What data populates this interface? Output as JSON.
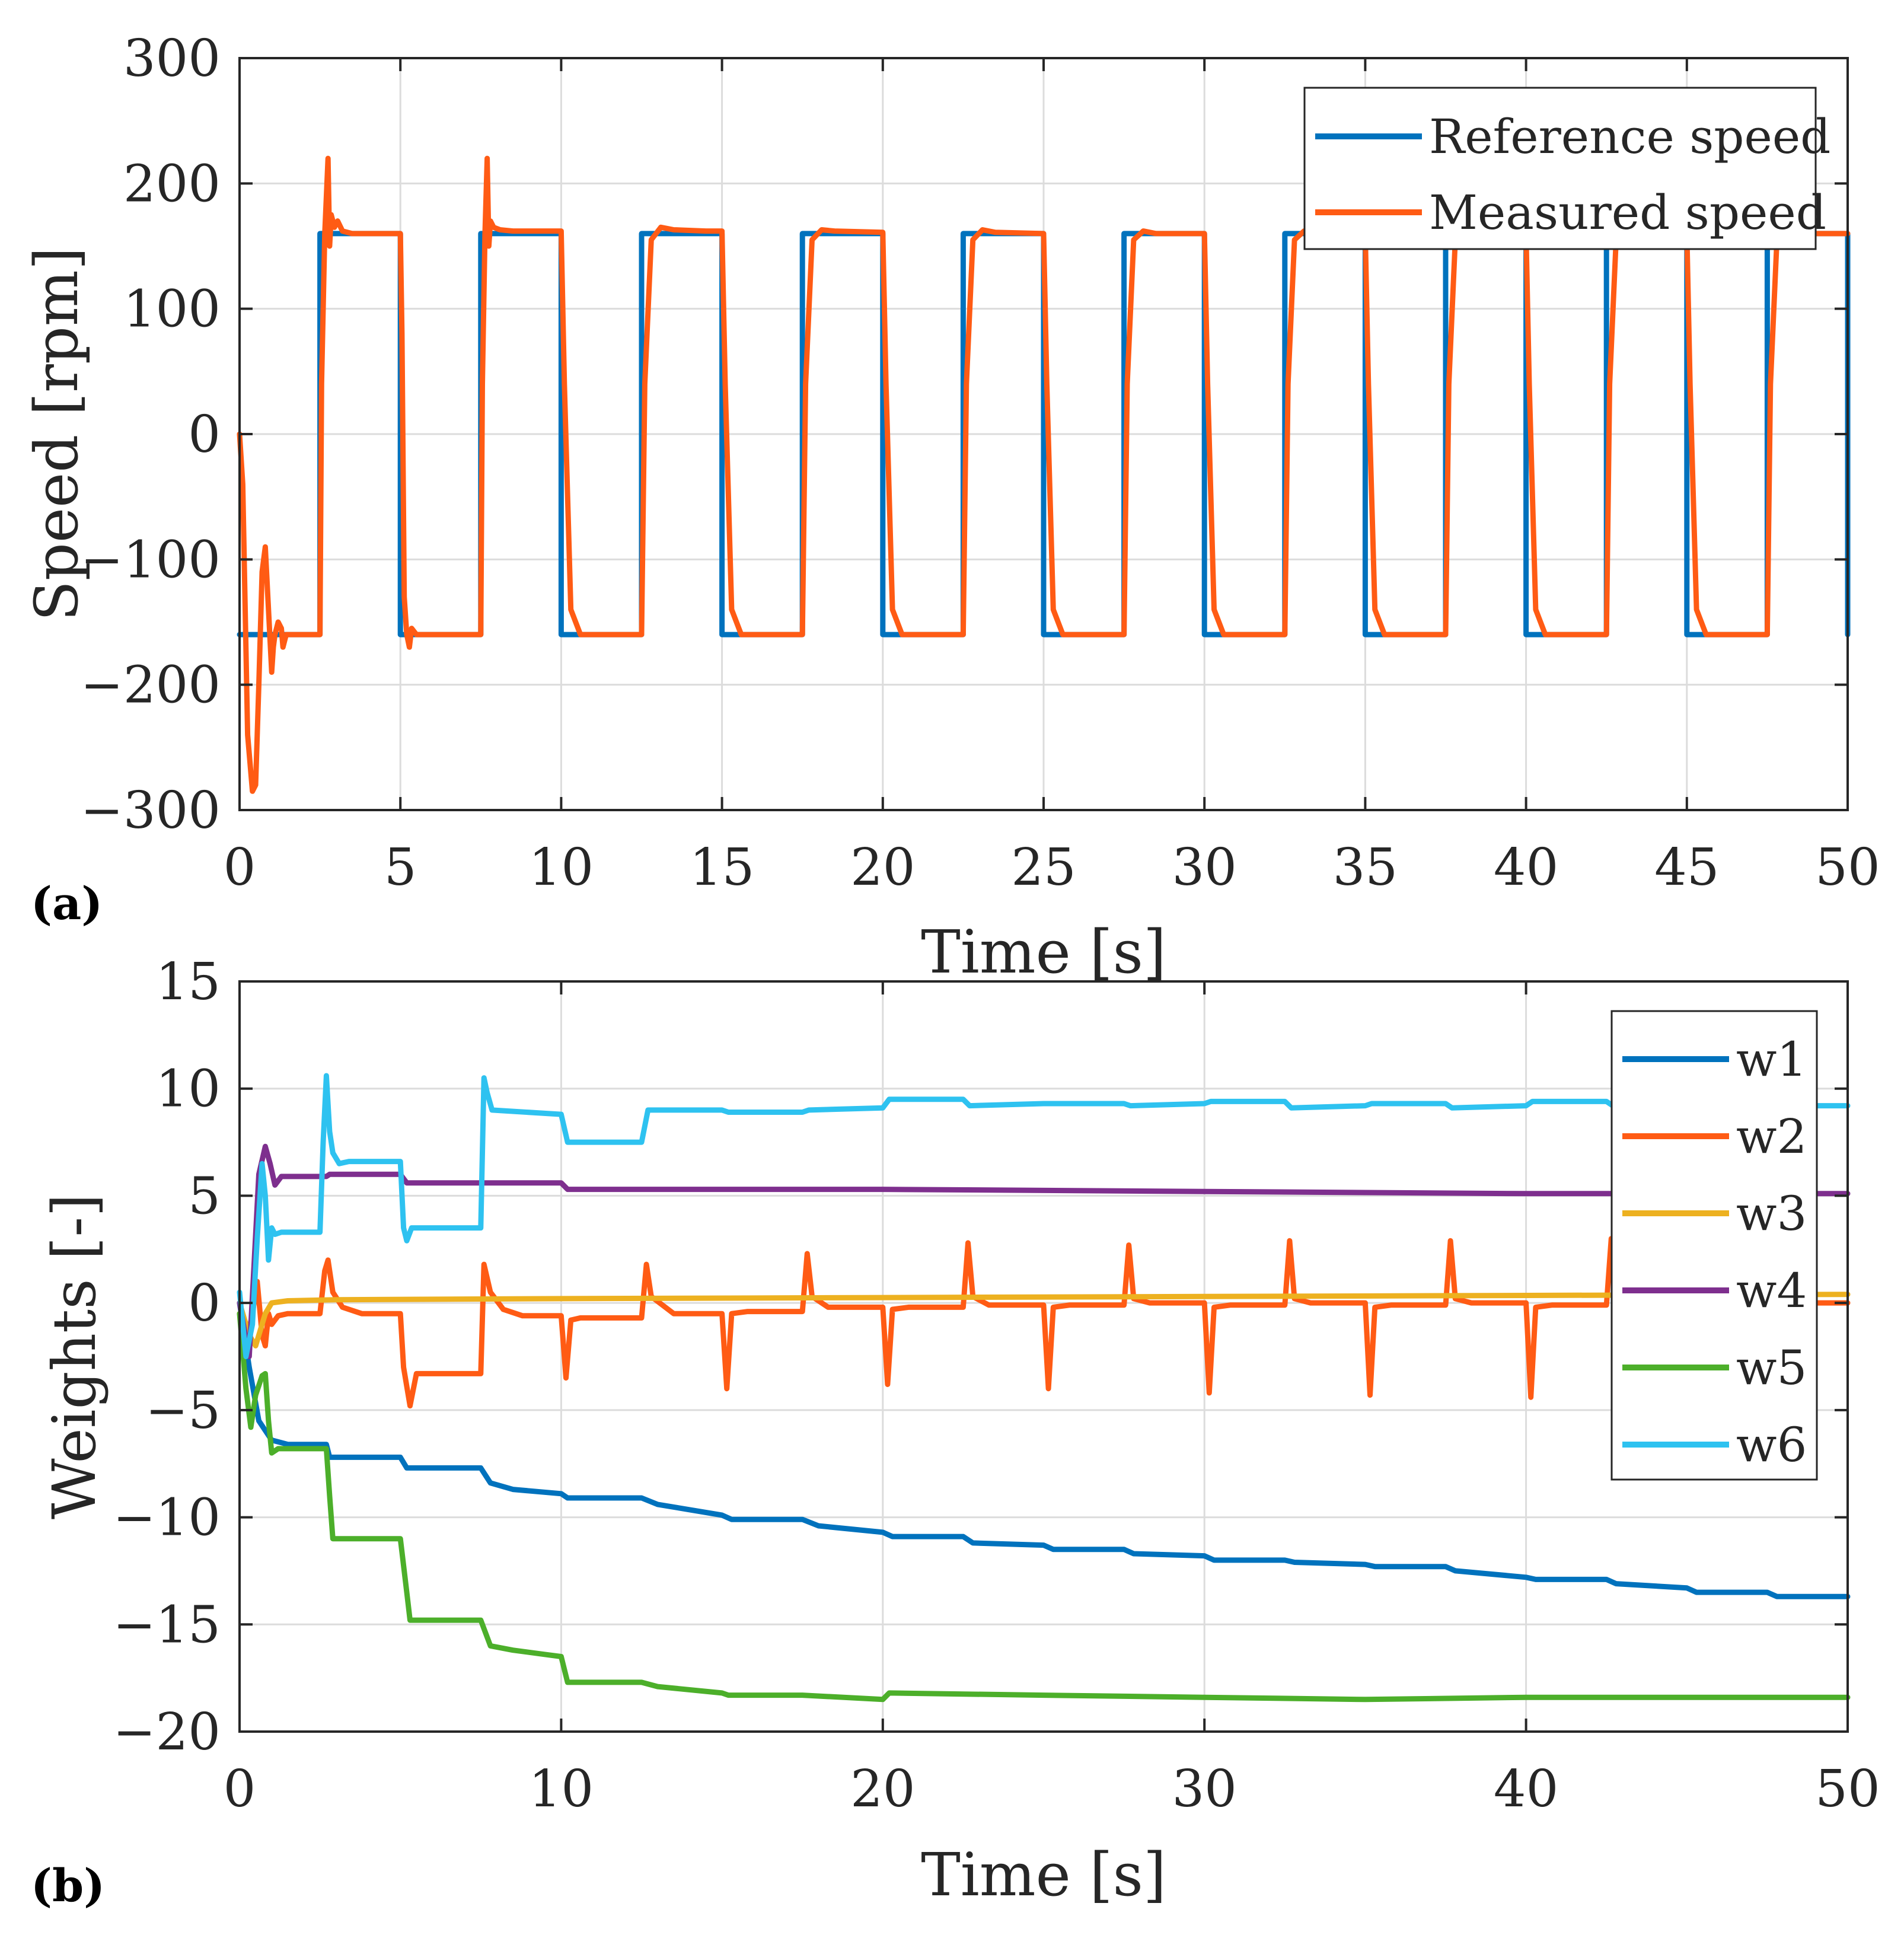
{
  "chart_data": [
    {
      "panel_label": "(a)",
      "type": "line",
      "xlabel": "Time [s]",
      "ylabel": "Speed [rpm]",
      "xlim": [
        0,
        50
      ],
      "ylim": [
        -300,
        300
      ],
      "xticks": [
        0,
        5,
        10,
        15,
        20,
        25,
        30,
        35,
        40,
        45,
        50
      ],
      "yticks": [
        -300,
        -200,
        -100,
        0,
        100,
        200,
        300
      ],
      "xtick_labels": [
        "0",
        "5",
        "10",
        "15",
        "20",
        "25",
        "30",
        "35",
        "40",
        "45",
        "50"
      ],
      "ytick_labels": [
        "−300",
        "−200",
        "−100",
        "0",
        "100",
        "200",
        "300"
      ],
      "grid": true,
      "legend_position": "top-right",
      "series": [
        {
          "name": "Reference speed",
          "color": "#0072BD",
          "x": [
            0,
            2.5,
            2.5,
            5,
            5,
            7.5,
            7.5,
            10,
            10,
            12.5,
            12.5,
            15,
            15,
            17.5,
            17.5,
            20,
            20,
            22.5,
            22.5,
            25,
            25,
            27.5,
            27.5,
            30,
            30,
            32.5,
            32.5,
            35,
            35,
            37.5,
            37.5,
            40,
            40,
            42.5,
            42.5,
            45,
            45,
            47.5,
            47.5,
            50,
            50
          ],
          "values": [
            -160,
            -160,
            160,
            160,
            -160,
            -160,
            160,
            160,
            -160,
            -160,
            160,
            160,
            -160,
            -160,
            160,
            160,
            -160,
            -160,
            160,
            160,
            -160,
            -160,
            160,
            160,
            -160,
            -160,
            160,
            160,
            -160,
            -160,
            160,
            160,
            -160,
            -160,
            160,
            160,
            -160,
            -160,
            160,
            160,
            -160
          ]
        },
        {
          "name": "Measured speed",
          "color": "#FF5B14",
          "x": [
            0,
            0.1,
            0.25,
            0.4,
            0.5,
            0.6,
            0.7,
            0.8,
            0.9,
            1.0,
            1.05,
            1.1,
            1.2,
            1.3,
            1.35,
            1.45,
            1.6,
            1.8,
            2.0,
            2.5,
            2.55,
            2.65,
            2.75,
            2.8,
            2.85,
            2.95,
            3.05,
            3.2,
            3.5,
            4.0,
            5.0,
            5.05,
            5.12,
            5.2,
            5.28,
            5.35,
            5.5,
            6.0,
            7.5,
            7.55,
            7.63,
            7.7,
            7.75,
            7.8,
            7.9,
            8.1,
            8.5,
            9.0,
            10.0,
            10.1,
            10.3,
            10.6,
            11.0,
            12.5,
            12.6,
            12.8,
            13.1,
            13.5,
            14.5,
            15.0,
            15.1,
            15.3,
            15.6,
            16.0,
            17.5,
            17.6,
            17.8,
            18.1,
            18.5,
            20.0,
            20.1,
            20.3,
            20.6,
            21.0,
            22.5,
            22.6,
            22.8,
            23.1,
            23.5,
            25.0,
            25.1,
            25.3,
            25.6,
            26.0,
            27.5,
            27.6,
            27.8,
            28.1,
            28.5,
            30.0,
            30.1,
            30.3,
            30.6,
            31.0,
            32.5,
            32.6,
            32.8,
            33.1,
            33.5,
            35.0,
            35.1,
            35.3,
            35.6,
            36.0,
            37.5,
            37.6,
            37.8,
            38.1,
            38.5,
            40.0,
            40.1,
            40.3,
            40.6,
            41.0,
            42.5,
            42.6,
            42.8,
            43.1,
            43.5,
            45.0,
            45.1,
            45.3,
            45.6,
            46.0,
            47.5,
            47.6,
            47.8,
            48.1,
            48.5,
            50.0
          ],
          "values": [
            0,
            -40,
            -240,
            -285,
            -280,
            -200,
            -110,
            -90,
            -140,
            -190,
            -170,
            -160,
            -150,
            -155,
            -170,
            -160,
            -160,
            -160,
            -160,
            -160,
            40,
            160,
            220,
            150,
            175,
            165,
            170,
            162,
            160,
            160,
            160,
            80,
            -130,
            -160,
            -170,
            -155,
            -160,
            -160,
            -160,
            40,
            160,
            220,
            150,
            170,
            165,
            163,
            162,
            162,
            162,
            40,
            -140,
            -160,
            -160,
            -160,
            40,
            155,
            165,
            163,
            162,
            162,
            40,
            -140,
            -160,
            -160,
            -160,
            40,
            155,
            163,
            162,
            161,
            40,
            -140,
            -160,
            -160,
            -160,
            40,
            155,
            163,
            161,
            160,
            40,
            -140,
            -160,
            -160,
            -160,
            40,
            155,
            162,
            160,
            160,
            40,
            -140,
            -160,
            -160,
            -160,
            40,
            155,
            162,
            160,
            160,
            40,
            -140,
            -160,
            -160,
            -160,
            40,
            155,
            161,
            160,
            160,
            40,
            -140,
            -160,
            -160,
            -160,
            40,
            155,
            161,
            160,
            160,
            40,
            -140,
            -160,
            -160,
            -160,
            40,
            155,
            161,
            160,
            160
          ]
        }
      ]
    },
    {
      "panel_label": "(b)",
      "type": "line",
      "xlabel": "Time [s]",
      "ylabel": "Weights [-]",
      "xlim": [
        0,
        50
      ],
      "ylim": [
        -20,
        15
      ],
      "xticks": [
        0,
        10,
        20,
        30,
        40,
        50
      ],
      "yticks": [
        -20,
        -15,
        -10,
        -5,
        0,
        5,
        10,
        15
      ],
      "xtick_labels": [
        "0",
        "10",
        "20",
        "30",
        "40",
        "50"
      ],
      "ytick_labels": [
        "−20",
        "−15",
        "−10",
        "−5",
        "0",
        "5",
        "10",
        "15"
      ],
      "grid": true,
      "legend_position": "right",
      "series": [
        {
          "name": "w1",
          "color": "#0072BD",
          "x": [
            0,
            0.3,
            0.6,
            1.0,
            1.5,
            2.7,
            2.8,
            5.0,
            5.2,
            7.5,
            7.8,
            8.5,
            10.0,
            10.2,
            12.5,
            13.0,
            15.0,
            15.3,
            17.5,
            18.0,
            20.0,
            20.3,
            22.5,
            22.8,
            25.0,
            25.3,
            27.5,
            27.8,
            30.0,
            30.3,
            32.5,
            32.8,
            35.0,
            35.3,
            37.5,
            37.8,
            40.0,
            40.3,
            42.5,
            42.8,
            45.0,
            45.3,
            47.5,
            47.8,
            50.0
          ],
          "values": [
            0,
            -3,
            -5.5,
            -6.4,
            -6.6,
            -6.6,
            -7.2,
            -7.2,
            -7.7,
            -7.7,
            -8.4,
            -8.7,
            -8.9,
            -9.1,
            -9.1,
            -9.4,
            -9.9,
            -10.1,
            -10.1,
            -10.4,
            -10.7,
            -10.9,
            -10.9,
            -11.2,
            -11.3,
            -11.5,
            -11.5,
            -11.7,
            -11.8,
            -12.0,
            -12.0,
            -12.1,
            -12.2,
            -12.3,
            -12.3,
            -12.5,
            -12.8,
            -12.9,
            -12.9,
            -13.1,
            -13.3,
            -13.5,
            -13.5,
            -13.7,
            -13.7
          ]
        },
        {
          "name": "w2",
          "color": "#FF5B14",
          "x": [
            0,
            0.2,
            0.4,
            0.55,
            0.7,
            0.8,
            0.9,
            1.0,
            1.2,
            1.5,
            2.5,
            2.65,
            2.75,
            2.9,
            3.2,
            3.8,
            5.0,
            5.1,
            5.3,
            5.5,
            7.5,
            7.6,
            7.8,
            8.2,
            8.8,
            10.0,
            10.15,
            10.3,
            10.6,
            12.5,
            12.65,
            12.8,
            13.5,
            15.0,
            15.15,
            15.3,
            15.8,
            17.5,
            17.65,
            17.8,
            18.3,
            20.0,
            20.15,
            20.3,
            20.8,
            22.5,
            22.65,
            22.8,
            23.3,
            25.0,
            25.15,
            25.3,
            25.8,
            27.5,
            27.65,
            27.8,
            28.3,
            30.0,
            30.15,
            30.3,
            30.8,
            32.5,
            32.65,
            32.8,
            33.3,
            35.0,
            35.15,
            35.3,
            35.8,
            37.5,
            37.65,
            37.8,
            38.3,
            40.0,
            40.15,
            40.3,
            40.8,
            42.5,
            42.65,
            42.8,
            43.3,
            45.0,
            45.15,
            45.3,
            45.8,
            47.5,
            47.65,
            47.8,
            48.3,
            50.0
          ],
          "values": [
            -0.5,
            -2.0,
            -0.5,
            1.0,
            -1.5,
            -2.0,
            -0.5,
            -1.0,
            -0.6,
            -0.5,
            -0.5,
            1.5,
            2.0,
            0.5,
            -0.2,
            -0.5,
            -0.5,
            -3.0,
            -4.8,
            -3.3,
            -3.3,
            1.8,
            0.5,
            -0.3,
            -0.6,
            -0.6,
            -3.5,
            -0.8,
            -0.7,
            -0.7,
            1.8,
            0.3,
            -0.5,
            -0.5,
            -4.0,
            -0.5,
            -0.4,
            -0.4,
            2.3,
            0.3,
            -0.2,
            -0.2,
            -3.8,
            -0.3,
            -0.2,
            -0.2,
            2.8,
            0.3,
            -0.1,
            -0.1,
            -4.0,
            -0.2,
            -0.1,
            -0.1,
            2.7,
            0.2,
            0.0,
            0.0,
            -4.2,
            -0.2,
            -0.1,
            -0.1,
            2.9,
            0.2,
            0.0,
            0.0,
            -4.3,
            -0.2,
            -0.1,
            -0.1,
            2.9,
            0.2,
            0.0,
            0.0,
            -4.4,
            -0.2,
            -0.1,
            -0.1,
            3.0,
            0.2,
            0.0,
            0.0,
            -4.3,
            -0.2,
            -0.1,
            -0.1,
            3.0,
            0.2,
            0.0,
            0.0
          ]
        },
        {
          "name": "w3",
          "color": "#EDB120",
          "x": [
            0,
            0.3,
            0.5,
            0.8,
            1.0,
            1.5,
            3.0,
            10.0,
            20.0,
            30.0,
            40.0,
            50.0
          ],
          "values": [
            0,
            -1.5,
            -2.0,
            -0.5,
            0.0,
            0.1,
            0.15,
            0.2,
            0.25,
            0.3,
            0.35,
            0.4
          ]
        },
        {
          "name": "w4",
          "color": "#7E2F8E",
          "x": [
            0,
            0.3,
            0.6,
            0.8,
            0.95,
            1.1,
            1.3,
            2.7,
            2.8,
            5.0,
            5.2,
            10.0,
            10.2,
            20.0,
            30.0,
            40.0,
            50.0
          ],
          "values": [
            0,
            -2.5,
            6.0,
            7.3,
            6.5,
            5.5,
            5.9,
            5.9,
            6.0,
            6.0,
            5.6,
            5.6,
            5.3,
            5.3,
            5.2,
            5.1,
            5.1
          ]
        },
        {
          "name": "w5",
          "color": "#4CAF2A",
          "x": [
            0,
            0.2,
            0.35,
            0.5,
            0.7,
            0.8,
            0.9,
            1.0,
            1.2,
            2.7,
            2.8,
            2.9,
            5.0,
            5.2,
            5.3,
            7.5,
            7.8,
            8.5,
            9.5,
            10.0,
            10.2,
            12.5,
            13.0,
            15.0,
            15.2,
            17.5,
            20.0,
            20.2,
            25.0,
            30.0,
            35.0,
            40.0,
            45.0,
            50.0
          ],
          "values": [
            -0.5,
            -4.0,
            -5.8,
            -4.3,
            -3.4,
            -3.3,
            -5.5,
            -7.0,
            -6.8,
            -6.8,
            -9.0,
            -11.0,
            -11.0,
            -13.5,
            -14.8,
            -14.8,
            -16.0,
            -16.2,
            -16.4,
            -16.5,
            -17.7,
            -17.7,
            -17.9,
            -18.2,
            -18.3,
            -18.3,
            -18.5,
            -18.2,
            -18.3,
            -18.4,
            -18.5,
            -18.4,
            -18.4,
            -18.4
          ]
        },
        {
          "name": "w6",
          "color": "#2EC2F0",
          "x": [
            0,
            0.2,
            0.4,
            0.55,
            0.7,
            0.8,
            0.9,
            1.0,
            1.1,
            1.3,
            2.5,
            2.6,
            2.7,
            2.8,
            2.9,
            3.1,
            3.4,
            5.0,
            5.1,
            5.2,
            5.35,
            7.5,
            7.6,
            7.7,
            7.85,
            10.0,
            10.2,
            12.5,
            12.7,
            15.0,
            15.2,
            17.5,
            17.7,
            20.0,
            20.2,
            22.5,
            22.7,
            25.0,
            25.2,
            27.5,
            27.7,
            30.0,
            30.2,
            32.5,
            32.7,
            35.0,
            35.2,
            37.5,
            37.7,
            40.0,
            40.2,
            42.5,
            42.7,
            45.0,
            45.2,
            47.5,
            47.7,
            50.0
          ],
          "values": [
            0.5,
            -2.5,
            -1.0,
            3.0,
            6.5,
            5.0,
            2.0,
            3.5,
            3.2,
            3.3,
            3.3,
            7.5,
            10.6,
            8.0,
            7.0,
            6.5,
            6.6,
            6.6,
            3.5,
            2.9,
            3.5,
            3.5,
            10.5,
            9.8,
            9.0,
            8.8,
            7.5,
            7.5,
            9.0,
            9.0,
            8.9,
            8.9,
            9.0,
            9.1,
            9.5,
            9.5,
            9.2,
            9.3,
            9.3,
            9.3,
            9.2,
            9.3,
            9.4,
            9.4,
            9.1,
            9.2,
            9.3,
            9.3,
            9.1,
            9.2,
            9.4,
            9.4,
            9.2,
            9.2,
            9.3,
            9.3,
            9.2,
            9.2
          ]
        }
      ]
    }
  ]
}
